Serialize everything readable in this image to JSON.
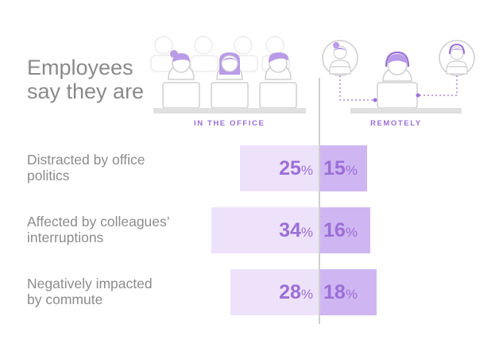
{
  "title": [
    "Employees",
    "say they are"
  ],
  "group_labels": {
    "office": "IN THE OFFICE",
    "remote": "REMOTELY"
  },
  "colors": {
    "office_bar": "#ede2fa",
    "remote_bar": "#cfb6f2",
    "accent": "#9b6fd6",
    "label": "#8c8c8c"
  },
  "chart_data": {
    "type": "bar",
    "orientation": "horizontal-diverging",
    "categories": [
      [
        "Distracted by office",
        "politics"
      ],
      [
        "Affected by colleagues’",
        "interruptions"
      ],
      [
        "Negatively impacted",
        "by commute"
      ]
    ],
    "series": [
      {
        "name": "IN THE OFFICE",
        "values": [
          25,
          34,
          28
        ]
      },
      {
        "name": "REMOTELY",
        "values": [
          15,
          16,
          18
        ]
      }
    ],
    "unit": "%"
  }
}
